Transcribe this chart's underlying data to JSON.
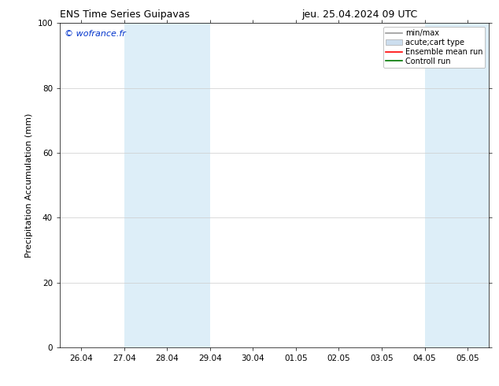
{
  "title": "ENS Time Series Guipavas      jeu. 25.04.2024 09 UTC",
  "title_left": "ENS Time Series Guipavas",
  "title_right": "jeu. 25.04.2024 09 UTC",
  "ylabel": "Precipitation Accumulation (mm)",
  "ylim": [
    0,
    100
  ],
  "yticks": [
    0,
    20,
    40,
    60,
    80,
    100
  ],
  "xtick_labels": [
    "26.04",
    "27.04",
    "28.04",
    "29.04",
    "30.04",
    "01.05",
    "02.05",
    "03.05",
    "04.05",
    "05.05"
  ],
  "xtick_positions": [
    0,
    1,
    2,
    3,
    4,
    5,
    6,
    7,
    8,
    9
  ],
  "xlim": [
    -0.5,
    9.5
  ],
  "shaded_bands": [
    {
      "x_start": 1,
      "x_end": 3,
      "color": "#ddeef8"
    },
    {
      "x_start": 8,
      "x_end": 9.5,
      "color": "#ddeef8"
    }
  ],
  "watermark_text": "© wofrance.fr",
  "watermark_color": "#0033cc",
  "legend_entries": [
    {
      "label": "min/max",
      "color": "#999999",
      "lw": 1.2,
      "type": "line"
    },
    {
      "label": "acute;cart type",
      "color": "#ccddee",
      "lw": 5,
      "type": "band"
    },
    {
      "label": "Ensemble mean run",
      "color": "#ff0000",
      "lw": 1.2,
      "type": "line"
    },
    {
      "label": "Controll run",
      "color": "#007700",
      "lw": 1.2,
      "type": "line"
    }
  ],
  "background_color": "#ffffff",
  "plot_bg_color": "#ffffff",
  "grid_color": "#cccccc",
  "title_fontsize": 9,
  "axis_label_fontsize": 8,
  "tick_fontsize": 7.5
}
